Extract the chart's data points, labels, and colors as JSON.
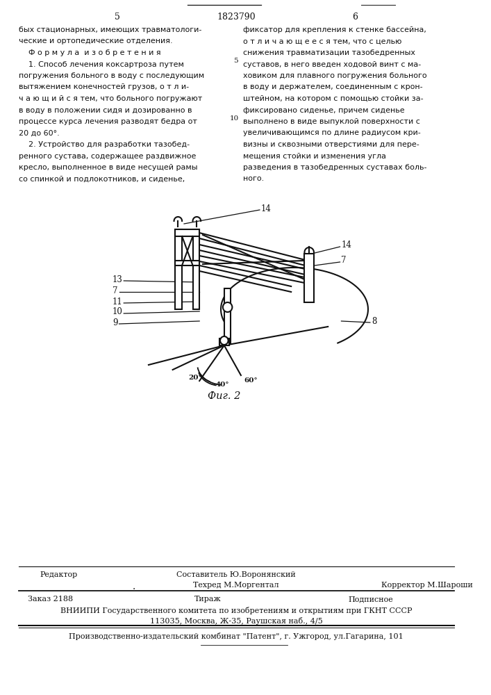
{
  "page_number_left": "5",
  "page_number_center": "1823790",
  "page_number_right": "6",
  "background_color": "#ffffff",
  "text_color": "#111111",
  "left_column_text": [
    "бых стационарных, имеющих травматологи-",
    "ческие и ортопедические отделения.",
    "    Ф о р м у л а  и з о б р е т е н и я",
    "    1. Способ лечения коксартроза путем",
    "погружения больного в воду с последующим",
    "вытяжением конечностей грузов, о т л и-",
    "ч а ю щ и й с я тем, что больного погружают",
    "в воду в положении сидя и дозированно в",
    "процессе курса лечения разводят бедра от",
    "20 до 60°.",
    "    2. Устройство для разработки тазобед-",
    "ренного сустава, содержащее раздвижное",
    "кресло, выполненное в виде несущей рамы",
    "со спинкой и подлокотников, и сиденье,"
  ],
  "right_column_text": [
    "фиксатор для крепления к стенке бассейна,",
    "о т л и ч а ю щ е е с я тем, что с целью",
    "снижения травматизации тазобедренных",
    "суставов, в него введен ходовой винт с ма-",
    "ховиком для плавного погружения больного",
    "в воду и держателем, соединенным с крон-",
    "штейном, на котором с помощью стойки за-",
    "фиксировано сиденье, причем сиденье",
    "выполнено в виде выпуклой поверхности с",
    "увеличивающимся по длине радиусом кри-",
    "визны и сквозными отверстиями для пере-",
    "мещения стойки и изменения угла",
    "разведения в тазобедренных суставах боль-",
    "ного."
  ],
  "fig_label": "Фиг. 2",
  "footer_editor": "Редактор",
  "footer_sostavitel": "Составитель Ю.Воронянский",
  "footer_tekhred": "Техред М.Моргентал",
  "footer_korrektor": "Корректор М.Шароши",
  "footer_order": "Заказ 2188",
  "footer_tirazh": "Тираж",
  "footer_podpisnoe": "Подписное",
  "footer_vniipи": "ВНИИПИ Государственного комитета по изобретениям и открытиям при ГКНТ СССР",
  "footer_address": "113035, Москва, Ж-35, Раушская наб., 4/5",
  "footer_production": "Производственно-издательский комбинат \"Патент\", г. Ужгород, ул.Гагарина, 101"
}
